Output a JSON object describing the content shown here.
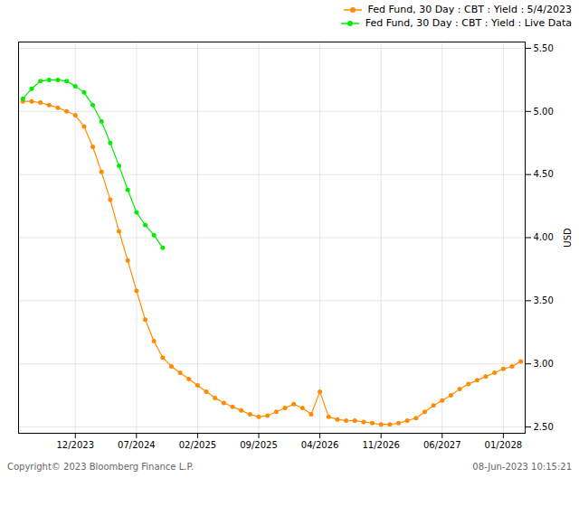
{
  "chart_data": {
    "type": "line",
    "ylabel": "USD",
    "annotations": [
      "Copyright© 2023 Bloomberg Finance L.P.",
      "08-Jun-2023 10:15:21"
    ],
    "xlim": [
      -0.5,
      57.5
    ],
    "xticks": [
      {
        "value": 6,
        "label": "12/2023"
      },
      {
        "value": 13,
        "label": "07/2024"
      },
      {
        "value": 20,
        "label": "02/2025"
      },
      {
        "value": 27,
        "label": "09/2025"
      },
      {
        "value": 34,
        "label": "04/2026"
      },
      {
        "value": 41,
        "label": "11/2026"
      },
      {
        "value": 48,
        "label": "06/2027"
      },
      {
        "value": 55,
        "label": "01/2028"
      }
    ],
    "ylim": [
      2.45,
      5.55
    ],
    "yticks": [
      {
        "value": 2.5,
        "label": "2.50"
      },
      {
        "value": 3.0,
        "label": "3.00"
      },
      {
        "value": 3.5,
        "label": "3.50"
      },
      {
        "value": 4.0,
        "label": "4.00"
      },
      {
        "value": 4.5,
        "label": "4.50"
      },
      {
        "value": 5.0,
        "label": "5.00"
      },
      {
        "value": 5.5,
        "label": "5.50"
      }
    ],
    "grid": true,
    "legend": "upper right",
    "series": [
      {
        "name": "Fed Fund, 30 Day : CBT : Yield : 5/4/2023",
        "color": "#ff8c00",
        "marker": "o",
        "x": [
          0,
          1,
          2,
          3,
          4,
          5,
          6,
          7,
          8,
          9,
          10,
          11,
          12,
          13,
          14,
          15,
          16,
          17,
          18,
          19,
          20,
          21,
          22,
          23,
          24,
          25,
          26,
          27,
          28,
          29,
          30,
          31,
          32,
          33,
          34,
          35,
          36,
          37,
          38,
          39,
          40,
          41,
          42,
          43,
          44,
          45,
          46,
          47,
          48,
          49,
          50,
          51,
          52,
          53,
          54,
          55,
          56,
          57
        ],
        "values": [
          5.08,
          5.08,
          5.07,
          5.05,
          5.03,
          5.0,
          4.97,
          4.88,
          4.72,
          4.52,
          4.3,
          4.05,
          3.82,
          3.58,
          3.35,
          3.18,
          3.05,
          2.98,
          2.93,
          2.88,
          2.83,
          2.78,
          2.73,
          2.69,
          2.66,
          2.63,
          2.6,
          2.58,
          2.59,
          2.62,
          2.65,
          2.68,
          2.65,
          2.6,
          2.78,
          2.58,
          2.56,
          2.55,
          2.55,
          2.54,
          2.53,
          2.52,
          2.52,
          2.53,
          2.55,
          2.57,
          2.62,
          2.67,
          2.71,
          2.75,
          2.8,
          2.84,
          2.87,
          2.9,
          2.93,
          2.96,
          2.98,
          3.02
        ]
      },
      {
        "name": "Fed Fund, 30 Day : CBT : Yield : Live Data",
        "color": "#00ee00",
        "marker": "o",
        "x": [
          0,
          1,
          2,
          3,
          4,
          5,
          6,
          7,
          8,
          9,
          10,
          11,
          12,
          13,
          14,
          15,
          16
        ],
        "values": [
          5.1,
          5.18,
          5.24,
          5.25,
          5.25,
          5.24,
          5.2,
          5.15,
          5.05,
          4.92,
          4.75,
          4.57,
          4.38,
          4.2,
          4.1,
          4.02,
          3.92
        ]
      }
    ]
  }
}
